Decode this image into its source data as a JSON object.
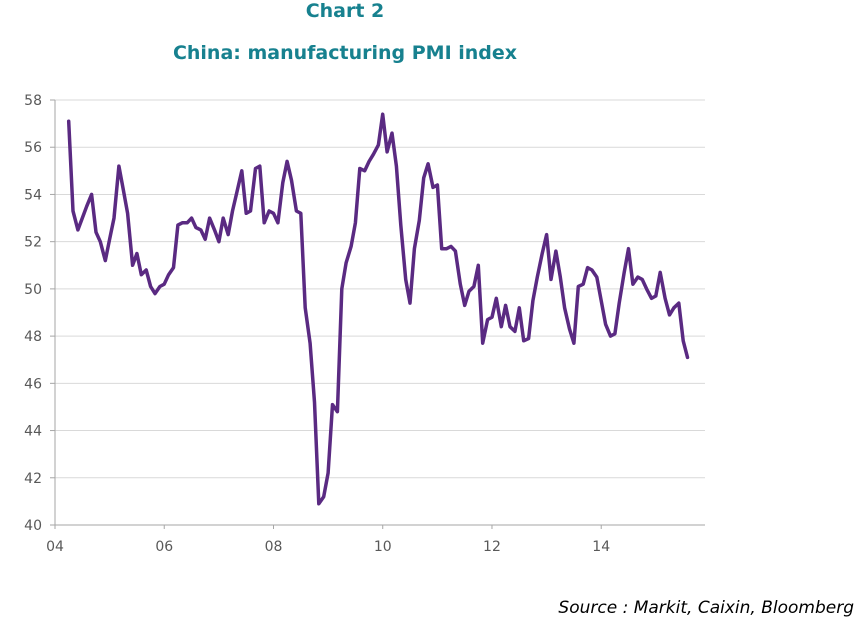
{
  "chart_number": "Chart 2",
  "source": "Source : Markit, Caixin, Bloomberg",
  "colors": {
    "title": "#17818f",
    "line": "#5a2a82",
    "grid": "#d9d9d9",
    "axis": "#a6a6a6"
  },
  "chart_data": {
    "type": "line",
    "title": "China: manufacturing PMI index",
    "xlabel": "",
    "ylabel": "",
    "xlim": [
      2004.0,
      2015.9
    ],
    "ylim": [
      40,
      58
    ],
    "x_ticks": [
      2004,
      2006,
      2008,
      2010,
      2012,
      2014
    ],
    "x_tick_labels": [
      "04",
      "06",
      "08",
      "10",
      "12",
      "14"
    ],
    "y_ticks": [
      40,
      42,
      44,
      46,
      48,
      50,
      52,
      54,
      56,
      58
    ],
    "grid": true,
    "series": [
      {
        "name": "",
        "x": [
          2004.25,
          2004.33,
          2004.42,
          2004.5,
          2004.58,
          2004.67,
          2004.75,
          2004.83,
          2004.92,
          2005.0,
          2005.08,
          2005.17,
          2005.25,
          2005.33,
          2005.42,
          2005.5,
          2005.58,
          2005.67,
          2005.75,
          2005.83,
          2005.92,
          2006.0,
          2006.08,
          2006.17,
          2006.25,
          2006.33,
          2006.42,
          2006.5,
          2006.58,
          2006.67,
          2006.75,
          2006.83,
          2006.92,
          2007.0,
          2007.08,
          2007.17,
          2007.25,
          2007.33,
          2007.42,
          2007.5,
          2007.58,
          2007.67,
          2007.75,
          2007.83,
          2007.92,
          2008.0,
          2008.08,
          2008.17,
          2008.25,
          2008.33,
          2008.42,
          2008.5,
          2008.58,
          2008.67,
          2008.75,
          2008.83,
          2008.92,
          2009.0,
          2009.08,
          2009.17,
          2009.25,
          2009.33,
          2009.42,
          2009.5,
          2009.58,
          2009.67,
          2009.75,
          2009.83,
          2009.92,
          2010.0,
          2010.08,
          2010.17,
          2010.25,
          2010.33,
          2010.42,
          2010.5,
          2010.58,
          2010.67,
          2010.75,
          2010.83,
          2010.92,
          2011.0,
          2011.08,
          2011.17,
          2011.25,
          2011.33,
          2011.42,
          2011.5,
          2011.58,
          2011.67,
          2011.75,
          2011.83,
          2011.92,
          2012.0,
          2012.08,
          2012.17,
          2012.25,
          2012.33,
          2012.42,
          2012.5,
          2012.58,
          2012.67,
          2012.75,
          2012.83,
          2012.92,
          2013.0,
          2013.08,
          2013.17,
          2013.25,
          2013.33,
          2013.42,
          2013.5,
          2013.58,
          2013.67,
          2013.75,
          2013.83,
          2013.92,
          2014.0,
          2014.08,
          2014.17,
          2014.25,
          2014.33,
          2014.42,
          2014.5,
          2014.58,
          2014.67,
          2014.75,
          2014.83,
          2014.92,
          2015.0,
          2015.08,
          2015.17,
          2015.25,
          2015.33,
          2015.42,
          2015.5,
          2015.58
        ],
        "y": [
          57.1,
          53.3,
          52.5,
          53.0,
          53.5,
          54.0,
          52.4,
          52.0,
          51.2,
          52.1,
          53.0,
          55.2,
          54.2,
          53.2,
          51.0,
          51.5,
          50.6,
          50.8,
          50.1,
          49.8,
          50.1,
          50.2,
          50.6,
          50.9,
          52.7,
          52.8,
          52.8,
          53.0,
          52.6,
          52.5,
          52.1,
          53.0,
          52.5,
          52.0,
          53.0,
          52.3,
          53.3,
          54.1,
          55.0,
          53.2,
          53.3,
          55.1,
          55.2,
          52.8,
          53.3,
          53.2,
          52.8,
          54.5,
          55.4,
          54.6,
          53.3,
          53.2,
          49.2,
          47.7,
          45.2,
          40.9,
          41.2,
          42.2,
          45.1,
          44.8,
          50.0,
          51.1,
          51.8,
          52.8,
          55.1,
          55.0,
          55.4,
          55.7,
          56.1,
          57.4,
          55.8,
          56.6,
          55.2,
          52.7,
          50.4,
          49.4,
          51.7,
          52.9,
          54.7,
          55.3,
          54.3,
          54.4,
          51.7,
          51.7,
          51.8,
          51.6,
          50.2,
          49.3,
          49.9,
          50.1,
          51.0,
          47.7,
          48.7,
          48.8,
          49.6,
          48.4,
          49.3,
          48.4,
          48.2,
          49.2,
          47.8,
          47.9,
          49.5,
          50.5,
          51.5,
          52.3,
          50.4,
          51.6,
          50.5,
          49.2,
          48.3,
          47.7,
          50.1,
          50.2,
          50.9,
          50.8,
          50.5,
          49.5,
          48.5,
          48.0,
          48.1,
          49.4,
          50.7,
          51.7,
          50.2,
          50.5,
          50.4,
          50.0,
          49.6,
          49.7,
          50.7,
          49.6,
          48.9,
          49.2,
          49.4,
          47.8,
          47.1
        ]
      }
    ]
  }
}
